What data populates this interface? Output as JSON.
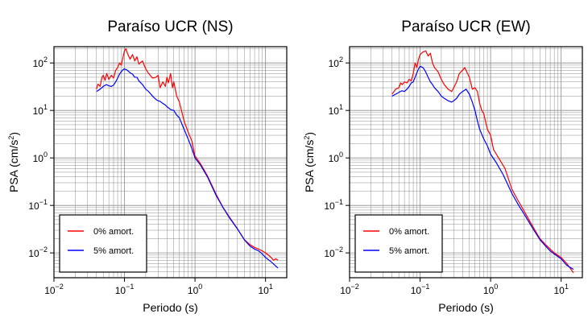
{
  "colors": {
    "damp0": "#ff0000",
    "damp5": "#0000ff",
    "grid": "#8c8c8c",
    "frame": "#000000"
  },
  "legend_labels": [
    "0% amort.",
    "5% amort."
  ],
  "chart_data": [
    {
      "type": "line",
      "title": "Paraíso UCR (NS)",
      "xlabel": "Periodo (s)",
      "ylabel": "PSA (cm/s²)",
      "ylabel_parts": {
        "main": "PSA (cm/s",
        "sup": "2",
        "close": ")"
      },
      "xscale": "log",
      "yscale": "log",
      "xlim": [
        0.01,
        20
      ],
      "ylim": [
        0.003,
        220
      ],
      "xticks": [
        {
          "value": 0.01,
          "base": "10",
          "exp": "−2"
        },
        {
          "value": 0.1,
          "base": "10",
          "exp": "−1"
        },
        {
          "value": 1,
          "base": "10",
          "exp": "0"
        },
        {
          "value": 10,
          "base": "10",
          "exp": "1"
        }
      ],
      "yticks": [
        {
          "value": 0.01,
          "base": "10",
          "exp": "−2"
        },
        {
          "value": 0.1,
          "base": "10",
          "exp": "−1"
        },
        {
          "value": 1,
          "base": "10",
          "exp": "0"
        },
        {
          "value": 10,
          "base": "10",
          "exp": "1"
        },
        {
          "value": 100,
          "base": "10",
          "exp": "2"
        }
      ],
      "grid": true,
      "legend_position": "bottom-left",
      "series": [
        {
          "name": "0% amort.",
          "color": "#ff0000",
          "x": [
            0.04,
            0.042,
            0.045,
            0.048,
            0.05,
            0.053,
            0.056,
            0.06,
            0.065,
            0.07,
            0.075,
            0.08,
            0.085,
            0.09,
            0.095,
            0.1,
            0.105,
            0.11,
            0.12,
            0.13,
            0.14,
            0.15,
            0.16,
            0.18,
            0.2,
            0.22,
            0.25,
            0.28,
            0.3,
            0.32,
            0.35,
            0.38,
            0.4,
            0.42,
            0.45,
            0.48,
            0.5,
            0.55,
            0.6,
            0.7,
            0.8,
            0.9,
            1.0,
            1.2,
            1.5,
            2.0,
            2.5,
            3.0,
            4.0,
            5.0,
            6.0,
            7.0,
            8.0,
            9.0,
            10.0,
            11.0,
            12.0,
            13.0,
            14.0,
            15.0
          ],
          "y": [
            28,
            36,
            32,
            50,
            55,
            43,
            60,
            45,
            55,
            48,
            70,
            80,
            100,
            90,
            130,
            180,
            200,
            160,
            120,
            150,
            110,
            135,
            95,
            110,
            75,
            60,
            48,
            50,
            55,
            30,
            40,
            32,
            50,
            38,
            60,
            30,
            40,
            20,
            15,
            6,
            3.5,
            2.3,
            1.1,
            0.75,
            0.42,
            0.17,
            0.09,
            0.06,
            0.032,
            0.019,
            0.015,
            0.013,
            0.012,
            0.011,
            0.01,
            0.009,
            0.008,
            0.007,
            0.0075,
            0.007
          ]
        },
        {
          "name": "5% amort.",
          "color": "#0000ff",
          "x": [
            0.04,
            0.045,
            0.05,
            0.055,
            0.06,
            0.065,
            0.07,
            0.075,
            0.08,
            0.085,
            0.09,
            0.095,
            0.1,
            0.11,
            0.12,
            0.13,
            0.14,
            0.15,
            0.16,
            0.18,
            0.2,
            0.22,
            0.25,
            0.28,
            0.3,
            0.32,
            0.35,
            0.38,
            0.4,
            0.45,
            0.5,
            0.55,
            0.6,
            0.7,
            0.8,
            0.9,
            1.0,
            1.2,
            1.5,
            2.0,
            2.5,
            3.0,
            4.0,
            5.0,
            6.0,
            7.0,
            8.0,
            9.0,
            10.0,
            12.0,
            15.0
          ],
          "y": [
            25,
            28,
            32,
            35,
            33,
            32,
            34,
            40,
            48,
            58,
            65,
            72,
            75,
            70,
            62,
            58,
            50,
            50,
            42,
            35,
            28,
            25,
            20,
            17,
            16,
            15.5,
            14,
            13,
            12,
            10.5,
            10,
            8,
            7,
            4,
            2.5,
            1.6,
            1.0,
            0.7,
            0.4,
            0.16,
            0.09,
            0.058,
            0.032,
            0.019,
            0.014,
            0.012,
            0.011,
            0.0095,
            0.008,
            0.0065,
            0.0048
          ]
        }
      ]
    },
    {
      "type": "line",
      "title": "Paraíso UCR (EW)",
      "xlabel": "Periodo (s)",
      "ylabel": "PSA (cm/s²)",
      "ylabel_parts": {
        "main": "PSA (cm/s",
        "sup": "2",
        "close": ")"
      },
      "xscale": "log",
      "yscale": "log",
      "xlim": [
        0.01,
        20
      ],
      "ylim": [
        0.003,
        220
      ],
      "xticks": [
        {
          "value": 0.01,
          "base": "10",
          "exp": "−2"
        },
        {
          "value": 0.1,
          "base": "10",
          "exp": "−1"
        },
        {
          "value": 1,
          "base": "10",
          "exp": "0"
        },
        {
          "value": 10,
          "base": "10",
          "exp": "1"
        }
      ],
      "yticks": [
        {
          "value": 0.01,
          "base": "10",
          "exp": "−2"
        },
        {
          "value": 0.1,
          "base": "10",
          "exp": "−1"
        },
        {
          "value": 1,
          "base": "10",
          "exp": "0"
        },
        {
          "value": 10,
          "base": "10",
          "exp": "1"
        },
        {
          "value": 100,
          "base": "10",
          "exp": "2"
        }
      ],
      "grid": true,
      "legend_position": "bottom-left",
      "series": [
        {
          "name": "0% amort.",
          "color": "#ff0000",
          "x": [
            0.04,
            0.045,
            0.05,
            0.053,
            0.056,
            0.06,
            0.065,
            0.07,
            0.075,
            0.08,
            0.085,
            0.09,
            0.095,
            0.1,
            0.11,
            0.12,
            0.13,
            0.14,
            0.15,
            0.16,
            0.18,
            0.2,
            0.22,
            0.25,
            0.28,
            0.3,
            0.33,
            0.36,
            0.4,
            0.43,
            0.47,
            0.5,
            0.55,
            0.6,
            0.65,
            0.7,
            0.75,
            0.8,
            0.9,
            1.0,
            1.1,
            1.3,
            1.6,
            2.0,
            2.5,
            3.0,
            4.0,
            5.0,
            6.0,
            7.0,
            8.0,
            10.0,
            12.0,
            15.0
          ],
          "y": [
            22,
            28,
            30,
            38,
            35,
            40,
            38,
            45,
            42,
            60,
            100,
            80,
            120,
            150,
            170,
            180,
            140,
            160,
            100,
            80,
            65,
            45,
            35,
            28,
            25,
            30,
            40,
            60,
            70,
            80,
            60,
            50,
            28,
            30,
            25,
            14,
            10,
            8.5,
            4,
            3.0,
            1.5,
            1.0,
            0.6,
            0.22,
            0.12,
            0.075,
            0.035,
            0.02,
            0.015,
            0.012,
            0.01,
            0.008,
            0.006,
            0.0038
          ]
        },
        {
          "name": "5% amort.",
          "color": "#0000ff",
          "x": [
            0.04,
            0.045,
            0.05,
            0.055,
            0.06,
            0.065,
            0.07,
            0.075,
            0.08,
            0.085,
            0.09,
            0.095,
            0.1,
            0.11,
            0.12,
            0.13,
            0.14,
            0.15,
            0.16,
            0.18,
            0.2,
            0.22,
            0.25,
            0.28,
            0.3,
            0.33,
            0.36,
            0.4,
            0.45,
            0.5,
            0.55,
            0.6,
            0.65,
            0.7,
            0.8,
            0.9,
            1.0,
            1.2,
            1.5,
            2.0,
            2.5,
            3.0,
            4.0,
            5.0,
            6.0,
            7.0,
            8.0,
            10.0,
            12.0,
            15.0
          ],
          "y": [
            20,
            22,
            24,
            26,
            25,
            28,
            32,
            38,
            40,
            50,
            62,
            75,
            85,
            80,
            65,
            50,
            40,
            35,
            30,
            25,
            20,
            18,
            16,
            15,
            16,
            18,
            22,
            25,
            28,
            22,
            15,
            10,
            6,
            4,
            2.5,
            1.8,
            1.2,
            0.8,
            0.45,
            0.18,
            0.1,
            0.065,
            0.032,
            0.019,
            0.014,
            0.011,
            0.0095,
            0.0075,
            0.0055,
            0.0045
          ]
        }
      ]
    }
  ]
}
